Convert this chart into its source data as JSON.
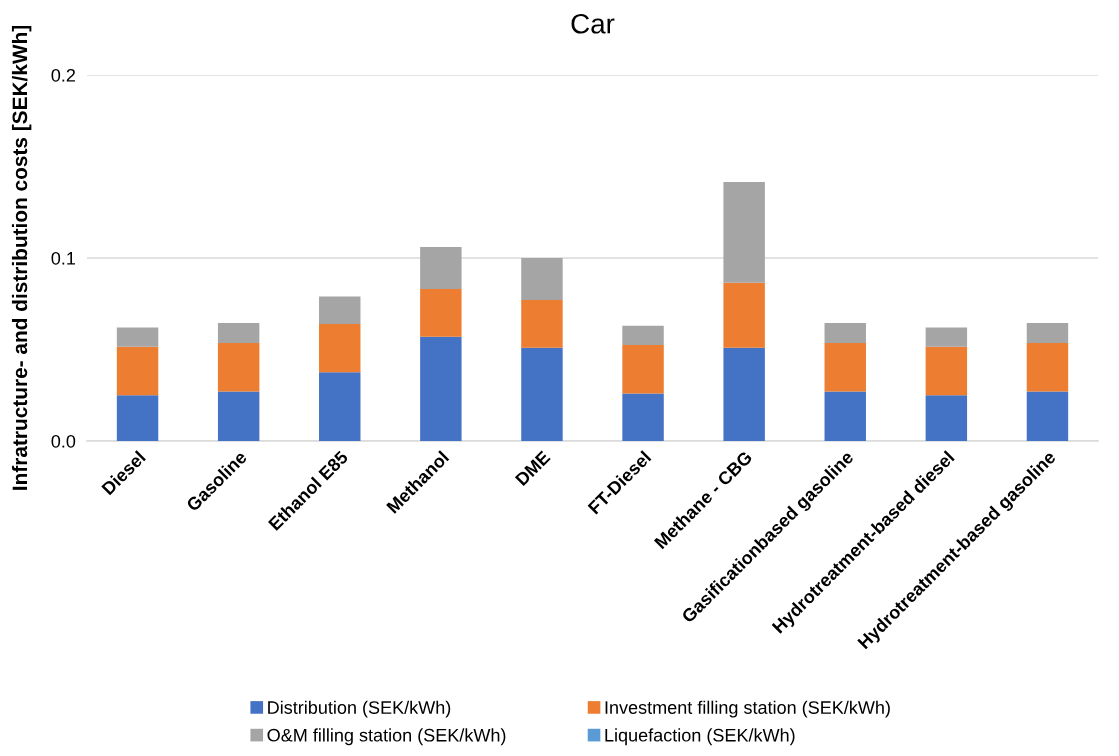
{
  "chart_data": {
    "type": "bar",
    "title": "Car",
    "ylabel": "Infratructure- and distribution costs [SEK/kWh]",
    "categories": [
      "Diesel",
      "Gasoline",
      "Ethanol E85",
      "Methanol",
      "DME",
      "FT-Diesel",
      "Methane - CBG",
      "Gasificationbased gasoline",
      "Hydrotreatment-based diesel",
      "Hydrotreatment-based gasoline"
    ],
    "series": [
      {
        "name": "Distribution (SEK/kWh)",
        "color": "#4472c4",
        "values": [
          0.025,
          0.027,
          0.0375,
          0.057,
          0.051,
          0.026,
          0.051,
          0.027,
          0.025,
          0.027
        ]
      },
      {
        "name": "Investment filling station (SEK/kWh)",
        "color": "#ed7d31",
        "values": [
          0.0265,
          0.0265,
          0.0265,
          0.026,
          0.026,
          0.0265,
          0.0355,
          0.0265,
          0.0265,
          0.0265
        ]
      },
      {
        "name": "O&M filling station (SEK/kWh)",
        "color": "#a5a5a5",
        "values": [
          0.0105,
          0.011,
          0.015,
          0.023,
          0.023,
          0.0105,
          0.055,
          0.011,
          0.0105,
          0.011
        ]
      },
      {
        "name": "Liquefaction (SEK/kWh)",
        "color": "#5b9bd5",
        "values": [
          0,
          0,
          0,
          0,
          0,
          0,
          0,
          0,
          0,
          0
        ]
      }
    ],
    "stacked": true,
    "ylim": [
      0,
      0.2
    ],
    "yticks": [
      {
        "value": 0,
        "label": "0.0"
      },
      0.1,
      0.2
    ],
    "grid": "y",
    "legend": "bottom"
  }
}
